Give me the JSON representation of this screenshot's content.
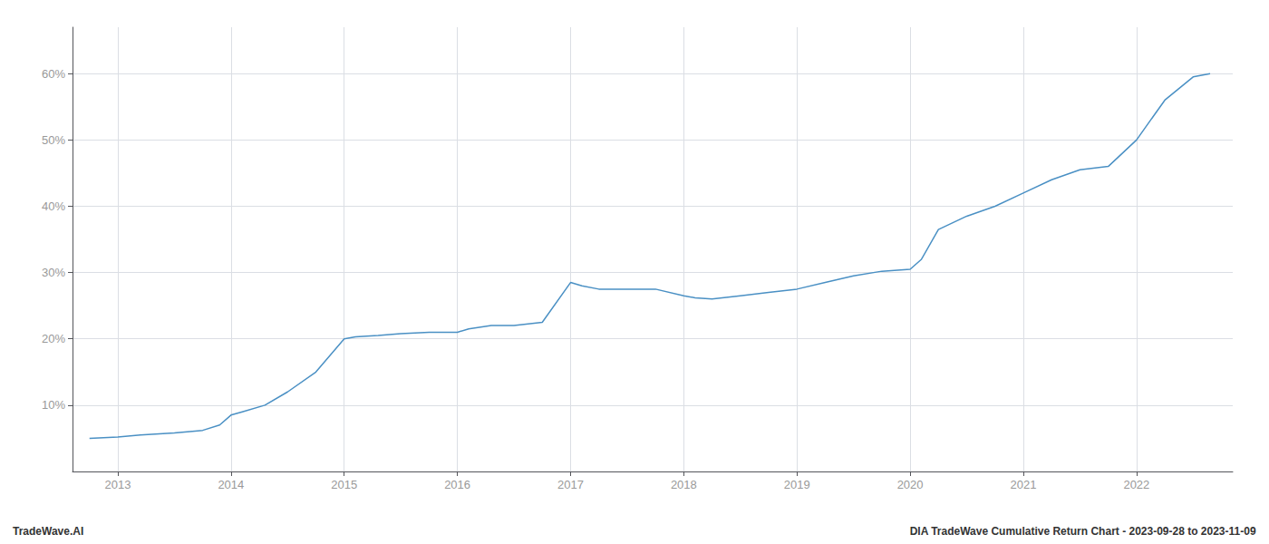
{
  "chart_data": {
    "type": "line",
    "x": [
      2012.75,
      2013.0,
      2013.2,
      2013.5,
      2013.75,
      2013.9,
      2014.0,
      2014.1,
      2014.3,
      2014.5,
      2014.75,
      2015.0,
      2015.1,
      2015.3,
      2015.5,
      2015.75,
      2016.0,
      2016.1,
      2016.3,
      2016.5,
      2016.75,
      2017.0,
      2017.1,
      2017.25,
      2017.5,
      2017.75,
      2018.0,
      2018.1,
      2018.25,
      2018.5,
      2018.75,
      2019.0,
      2019.25,
      2019.5,
      2019.75,
      2020.0,
      2020.1,
      2020.25,
      2020.5,
      2020.75,
      2021.0,
      2021.25,
      2021.5,
      2021.75,
      2022.0,
      2022.25,
      2022.5,
      2022.65
    ],
    "values": [
      5.0,
      5.2,
      5.5,
      5.8,
      6.2,
      7.0,
      8.5,
      9.0,
      10.0,
      12.0,
      15.0,
      20.0,
      20.3,
      20.5,
      20.8,
      21.0,
      21.0,
      21.5,
      22.0,
      22.0,
      22.5,
      28.5,
      28.0,
      27.5,
      27.5,
      27.5,
      26.5,
      26.2,
      26.0,
      26.5,
      27.0,
      27.5,
      28.5,
      29.5,
      30.2,
      30.5,
      32.0,
      36.5,
      38.5,
      40.0,
      42.0,
      44.0,
      45.5,
      46.0,
      50.0,
      56.0,
      59.5,
      60.0
    ],
    "color": "#4a90c4",
    "xlim": [
      2012.6,
      2022.85
    ],
    "xticks": [
      2013,
      2014,
      2015,
      2016,
      2017,
      2018,
      2019,
      2020,
      2021,
      2022
    ],
    "ylim": [
      0,
      67
    ],
    "yticks": [
      {
        "value": 10,
        "label": "10%"
      },
      {
        "value": 20,
        "label": "20%"
      },
      {
        "value": 30,
        "label": "30%"
      },
      {
        "value": 40,
        "label": "40%"
      },
      {
        "value": 50,
        "label": "50%"
      },
      {
        "value": 60,
        "label": "60%"
      }
    ],
    "grid": true,
    "annotations": [
      "TradeWave.AI",
      "DIA TradeWave Cumulative Return Chart - 2023-09-28 to 2023-11-09"
    ]
  }
}
